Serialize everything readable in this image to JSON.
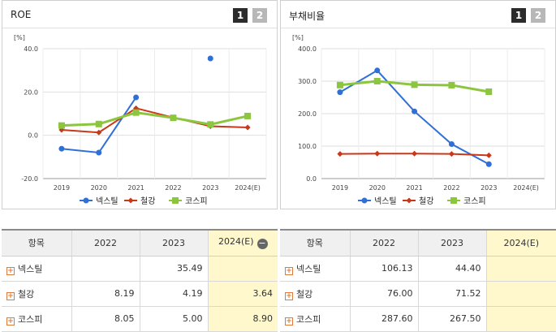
{
  "roe_panel": {
    "title": "ROE",
    "page1": "1",
    "page2": "2"
  },
  "debt_panel": {
    "title": "부채비율",
    "page1": "1",
    "page2": "2"
  },
  "chart_data": [
    {
      "type": "line",
      "title": "ROE",
      "unit": "[%]",
      "x": [
        "2019",
        "2020",
        "2021",
        "2022",
        "2023",
        "2024(E)"
      ],
      "ylim": [
        -20,
        40
      ],
      "yticks": [
        -20,
        0,
        20,
        40
      ],
      "ytick_labels": [
        "-20.0",
        "0.0",
        "20.0",
        "40.0"
      ],
      "grid": true,
      "legend": "bottom",
      "series": [
        {
          "name": "넥스틸",
          "color": "#2f6fd6",
          "marker": "circle",
          "values": [
            -6.2,
            -8.0,
            17.5,
            null,
            35.49,
            null
          ]
        },
        {
          "name": "철강",
          "color": "#c8381a",
          "marker": "diamond",
          "values": [
            2.5,
            1.3,
            12.5,
            8.19,
            4.19,
            3.64
          ]
        },
        {
          "name": "코스피",
          "color": "#8cc63f",
          "marker": "square",
          "values": [
            4.5,
            5.2,
            10.5,
            8.05,
            5.0,
            8.9
          ]
        }
      ]
    },
    {
      "type": "line",
      "title": "부채비율",
      "unit": "[%]",
      "x": [
        "2019",
        "2020",
        "2021",
        "2022",
        "2023",
        "2024(E)"
      ],
      "ylim": [
        0,
        400
      ],
      "yticks": [
        0,
        100,
        200,
        300,
        400
      ],
      "ytick_labels": [
        "0.0",
        "100.0",
        "200.0",
        "300.0",
        "400.0"
      ],
      "grid": true,
      "legend": "bottom",
      "series": [
        {
          "name": "넥스틸",
          "color": "#2f6fd6",
          "marker": "circle",
          "values": [
            266,
            333,
            207,
            106.13,
            44.4,
            null
          ]
        },
        {
          "name": "철강",
          "color": "#c8381a",
          "marker": "diamond",
          "values": [
            76,
            77,
            77,
            76.0,
            71.52,
            null
          ]
        },
        {
          "name": "코스피",
          "color": "#8cc63f",
          "marker": "square",
          "values": [
            288,
            300,
            289,
            287.6,
            267.5,
            null
          ]
        }
      ]
    }
  ],
  "roe_table": {
    "headers": [
      "항목",
      "2022",
      "2023",
      "2024(E)"
    ],
    "rows": [
      {
        "name": "넥스틸",
        "v2022": "",
        "v2023": "35.49",
        "v2024": ""
      },
      {
        "name": "철강",
        "v2022": "8.19",
        "v2023": "4.19",
        "v2024": "3.64"
      },
      {
        "name": "코스피",
        "v2022": "8.05",
        "v2023": "5.00",
        "v2024": "8.90"
      }
    ]
  },
  "debt_table": {
    "headers": [
      "항목",
      "2022",
      "2023",
      "2024(E)"
    ],
    "rows": [
      {
        "name": "넥스틸",
        "v2022": "106.13",
        "v2023": "44.40",
        "v2024": ""
      },
      {
        "name": "철강",
        "v2022": "76.00",
        "v2023": "71.52",
        "v2024": ""
      },
      {
        "name": "코스피",
        "v2022": "287.60",
        "v2023": "267.50",
        "v2024": ""
      }
    ]
  }
}
